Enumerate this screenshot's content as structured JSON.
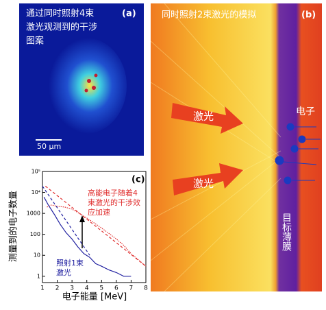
{
  "panels": {
    "a": {
      "label": "(a)",
      "caption": [
        "通过同时照射4束",
        "激光观测到的干涉",
        "图案"
      ],
      "scalebar": "50 μm"
    },
    "b": {
      "label": "(b)",
      "title": "同时照射2束激光的模拟",
      "laser_labels": [
        "激光",
        "激光"
      ],
      "electron_label": "电子",
      "target_label": "目标薄膜"
    }
  },
  "chart_data": {
    "type": "line",
    "label": "(c)",
    "ylabel": "测量到的电子数量",
    "xlabel": "电子能量 [MeV]",
    "log_y": true,
    "xlim": [
      1,
      8
    ],
    "ylim": [
      0.5,
      100000
    ],
    "xticks": [
      1,
      2,
      3,
      4,
      5,
      6,
      7,
      8
    ],
    "yticks": [
      1,
      10,
      100,
      1000,
      {
        "value": 10000,
        "label": "10⁴"
      },
      {
        "value": 100000,
        "label": "10⁵"
      }
    ],
    "series": [
      {
        "color": "#e03030",
        "style": "dotted",
        "x": [
          1.3,
          1.6,
          2,
          2.5,
          3,
          3.5,
          4,
          4.5,
          5,
          5.5,
          6,
          6.5,
          7,
          7.5,
          8
        ],
        "values": [
          2000,
          2500,
          2200,
          2000,
          1600,
          1000,
          600,
          350,
          200,
          110,
          60,
          30,
          12,
          6,
          3
        ]
      },
      {
        "color": "#2020a0",
        "style": "solid",
        "x": [
          1.1,
          1.4,
          1.8,
          2.2,
          2.6,
          3,
          3.4,
          3.8,
          4.2,
          4.6,
          5,
          5.5,
          6,
          6.5,
          7
        ],
        "values": [
          6000,
          2500,
          900,
          300,
          120,
          60,
          25,
          12,
          8,
          4,
          3,
          2,
          1.5,
          1,
          1
        ]
      },
      {
        "color": "#e03030",
        "style": "dashed",
        "x": [
          1.2,
          8
        ],
        "values": [
          20000,
          3
        ]
      },
      {
        "color": "#2020a0",
        "style": "dashed",
        "x": [
          1,
          4.2
        ],
        "values": [
          20000,
          10
        ]
      }
    ],
    "annotations": [
      {
        "color": "#e03030",
        "lines": [
          "高能电子随着4",
          "束激光的干涉效",
          "应加速"
        ]
      },
      {
        "color": "#2020a0",
        "lines": [
          "照射1束",
          "激光"
        ]
      }
    ]
  }
}
